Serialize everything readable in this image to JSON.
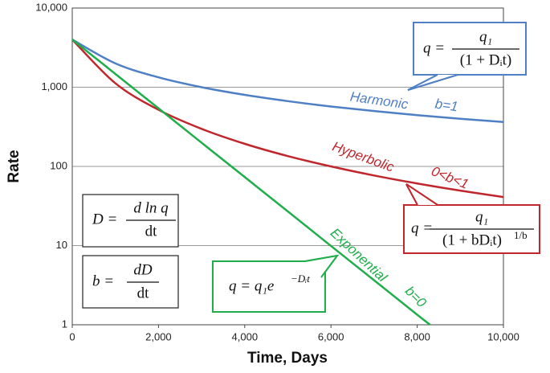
{
  "chart_data": {
    "type": "line",
    "xlabel": "Time, Days",
    "ylabel": "Rate",
    "xlim": [
      0,
      10000
    ],
    "xticks": [
      0,
      {
        "value": 2000,
        "label": "2,000"
      },
      {
        "value": 4000,
        "label": "4,000"
      },
      {
        "value": 6000,
        "label": "6,000"
      },
      {
        "value": 8000,
        "label": "8,000"
      },
      {
        "value": 10000,
        "label": "10,000"
      }
    ],
    "ylim": [
      1,
      10000
    ],
    "yticks": [
      1,
      10,
      100,
      {
        "value": 1000,
        "label": "1,000"
      },
      {
        "value": 10000,
        "label": "10,000"
      }
    ],
    "ylog": true,
    "grid": true,
    "series": [
      {
        "name": "Harmonic",
        "color": "#4f7fc4",
        "annotation": "b=1",
        "x": [
          0,
          1000,
          2000,
          3000,
          4000,
          5000,
          6000,
          7000,
          8000,
          9000,
          10000
        ],
        "values": [
          4000,
          2000,
          1333,
          1000,
          800,
          667,
          571,
          500,
          444,
          400,
          364
        ]
      },
      {
        "name": "Hyperbolic",
        "color": "#c0272d",
        "annotation": "0<b<1",
        "x": [
          0,
          1000,
          2000,
          3000,
          4000,
          5000,
          6000,
          7000,
          8000,
          9000,
          10000
        ],
        "values": [
          4000,
          1122,
          519,
          298,
          193,
          135,
          100,
          76.8,
          60.9,
          49.5,
          41
        ]
      },
      {
        "name": "Exponential",
        "color": "#1fae4b",
        "annotation": "b=0",
        "x": [
          0,
          1000,
          2000,
          3000,
          4000,
          5000,
          6000,
          7000,
          8000,
          8300
        ],
        "values": [
          4000,
          1472,
          541,
          199,
          73.3,
          27.0,
          9.9,
          3.65,
          1.34,
          1.0
        ]
      }
    ],
    "callouts": [
      {
        "lhs": "q =",
        "num": "q₁",
        "den": "(1 + Dᵢt)"
      },
      {
        "lhs": "q =",
        "num": "q₁",
        "den": "(1 + bDᵢt)",
        "den_sup": "1/b"
      },
      {
        "lhs": "q =  q₁e",
        "sup": "−Dᵢt"
      }
    ],
    "definitions": [
      {
        "lhs": "D =",
        "num": "d ln q",
        "den": "dt"
      },
      {
        "lhs": "b =",
        "num": "dD",
        "den": "dt"
      }
    ]
  }
}
